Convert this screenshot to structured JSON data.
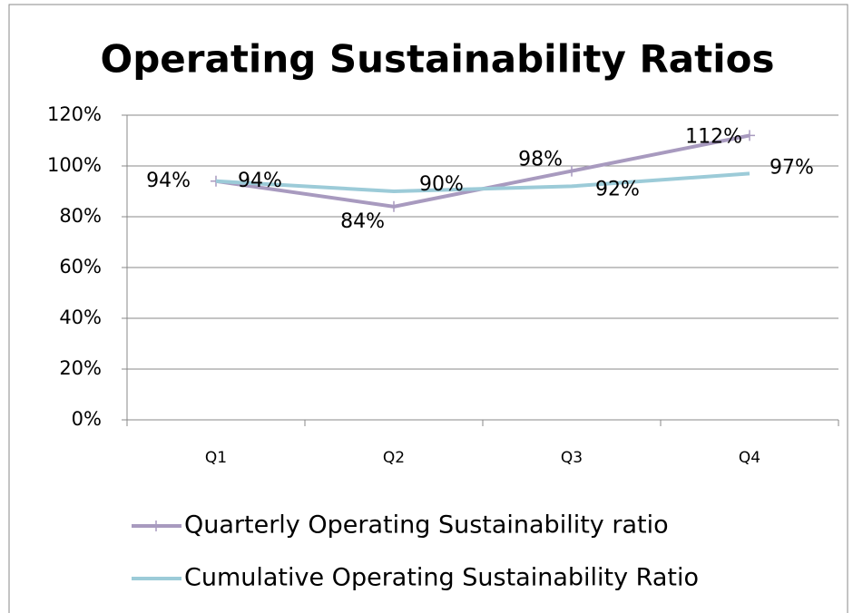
{
  "chart_data": {
    "type": "line",
    "title": "Operating Sustainability Ratios",
    "categories": [
      "Q1",
      "Q2",
      "Q3",
      "Q4"
    ],
    "series": [
      {
        "name": "Quarterly Operating Sustainability ratio",
        "color": "#a89abf",
        "values": [
          94,
          84,
          98,
          112
        ],
        "value_labels": [
          "94%",
          "84%",
          "98%",
          "112%"
        ]
      },
      {
        "name": "Cumulative Operating Sustainability Ratio",
        "color": "#9ccbd8",
        "values": [
          94,
          90,
          92,
          97
        ],
        "value_labels": [
          "94%",
          "90%",
          "92%",
          "97%"
        ]
      }
    ],
    "ylim": [
      0,
      120
    ],
    "yticks": [
      {
        "value": 0,
        "label": "0%"
      },
      {
        "value": 20,
        "label": "20%"
      },
      {
        "value": 40,
        "label": "40%"
      },
      {
        "value": 60,
        "label": "60%"
      },
      {
        "value": 80,
        "label": "80%"
      },
      {
        "value": 100,
        "label": "100%"
      },
      {
        "value": 120,
        "label": "120%"
      }
    ],
    "grid": true,
    "legend": "bottom"
  }
}
